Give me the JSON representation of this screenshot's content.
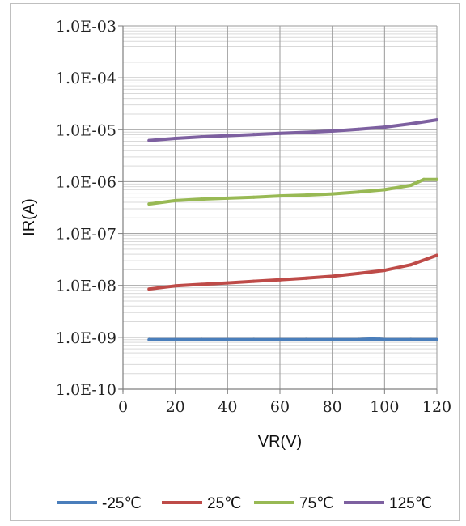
{
  "chart_data": {
    "type": "line",
    "title": "",
    "xlabel": "VR(V)",
    "ylabel": "IR(A)",
    "xlim": [
      0,
      120
    ],
    "ylim": [
      1e-10,
      0.001
    ],
    "y_scale": "log",
    "grid": true,
    "legend_position": "bottom",
    "x_ticks": [
      "0",
      "20",
      "40",
      "60",
      "80",
      "100",
      "120"
    ],
    "y_ticks": [
      "1.0E-10",
      "1.0E-09",
      "1.0E-08",
      "1.0E-07",
      "1.0E-06",
      "1.0E-05",
      "1.0E-04",
      "1.0E-03"
    ],
    "series": [
      {
        "name": "-25℃",
        "color": "#4a7ebb",
        "x": [
          10,
          20,
          30,
          40,
          50,
          60,
          70,
          80,
          90,
          95,
          98,
          100,
          110,
          120
        ],
        "y": [
          9e-10,
          9e-10,
          9e-10,
          9e-10,
          9e-10,
          9e-10,
          9e-10,
          9e-10,
          9e-10,
          9.3e-10,
          9.2e-10,
          9e-10,
          9e-10,
          9e-10
        ]
      },
      {
        "name": "25℃",
        "color": "#be4b48",
        "x": [
          10,
          20,
          30,
          40,
          50,
          60,
          70,
          80,
          90,
          100,
          110,
          120
        ],
        "y": [
          8.5e-09,
          9.8e-09,
          1.05e-08,
          1.12e-08,
          1.2e-08,
          1.28e-08,
          1.38e-08,
          1.5e-08,
          1.7e-08,
          1.95e-08,
          2.5e-08,
          3.8e-08
        ]
      },
      {
        "name": "75℃",
        "color": "#98b954",
        "x": [
          10,
          20,
          30,
          40,
          50,
          60,
          70,
          80,
          90,
          100,
          110,
          115,
          120
        ],
        "y": [
          3.7e-07,
          4.3e-07,
          4.6e-07,
          4.8e-07,
          5e-07,
          5.3e-07,
          5.5e-07,
          5.8e-07,
          6.3e-07,
          7e-07,
          8.5e-07,
          1.1e-06,
          1.1e-06
        ]
      },
      {
        "name": "125℃",
        "color": "#7d60a0",
        "x": [
          10,
          20,
          30,
          40,
          50,
          60,
          70,
          80,
          90,
          100,
          110,
          120
        ],
        "y": [
          6.2e-06,
          6.8e-06,
          7.3e-06,
          7.7e-06,
          8.1e-06,
          8.5e-06,
          8.9e-06,
          9.4e-06,
          1.02e-05,
          1.12e-05,
          1.3e-05,
          1.55e-05
        ]
      }
    ]
  }
}
